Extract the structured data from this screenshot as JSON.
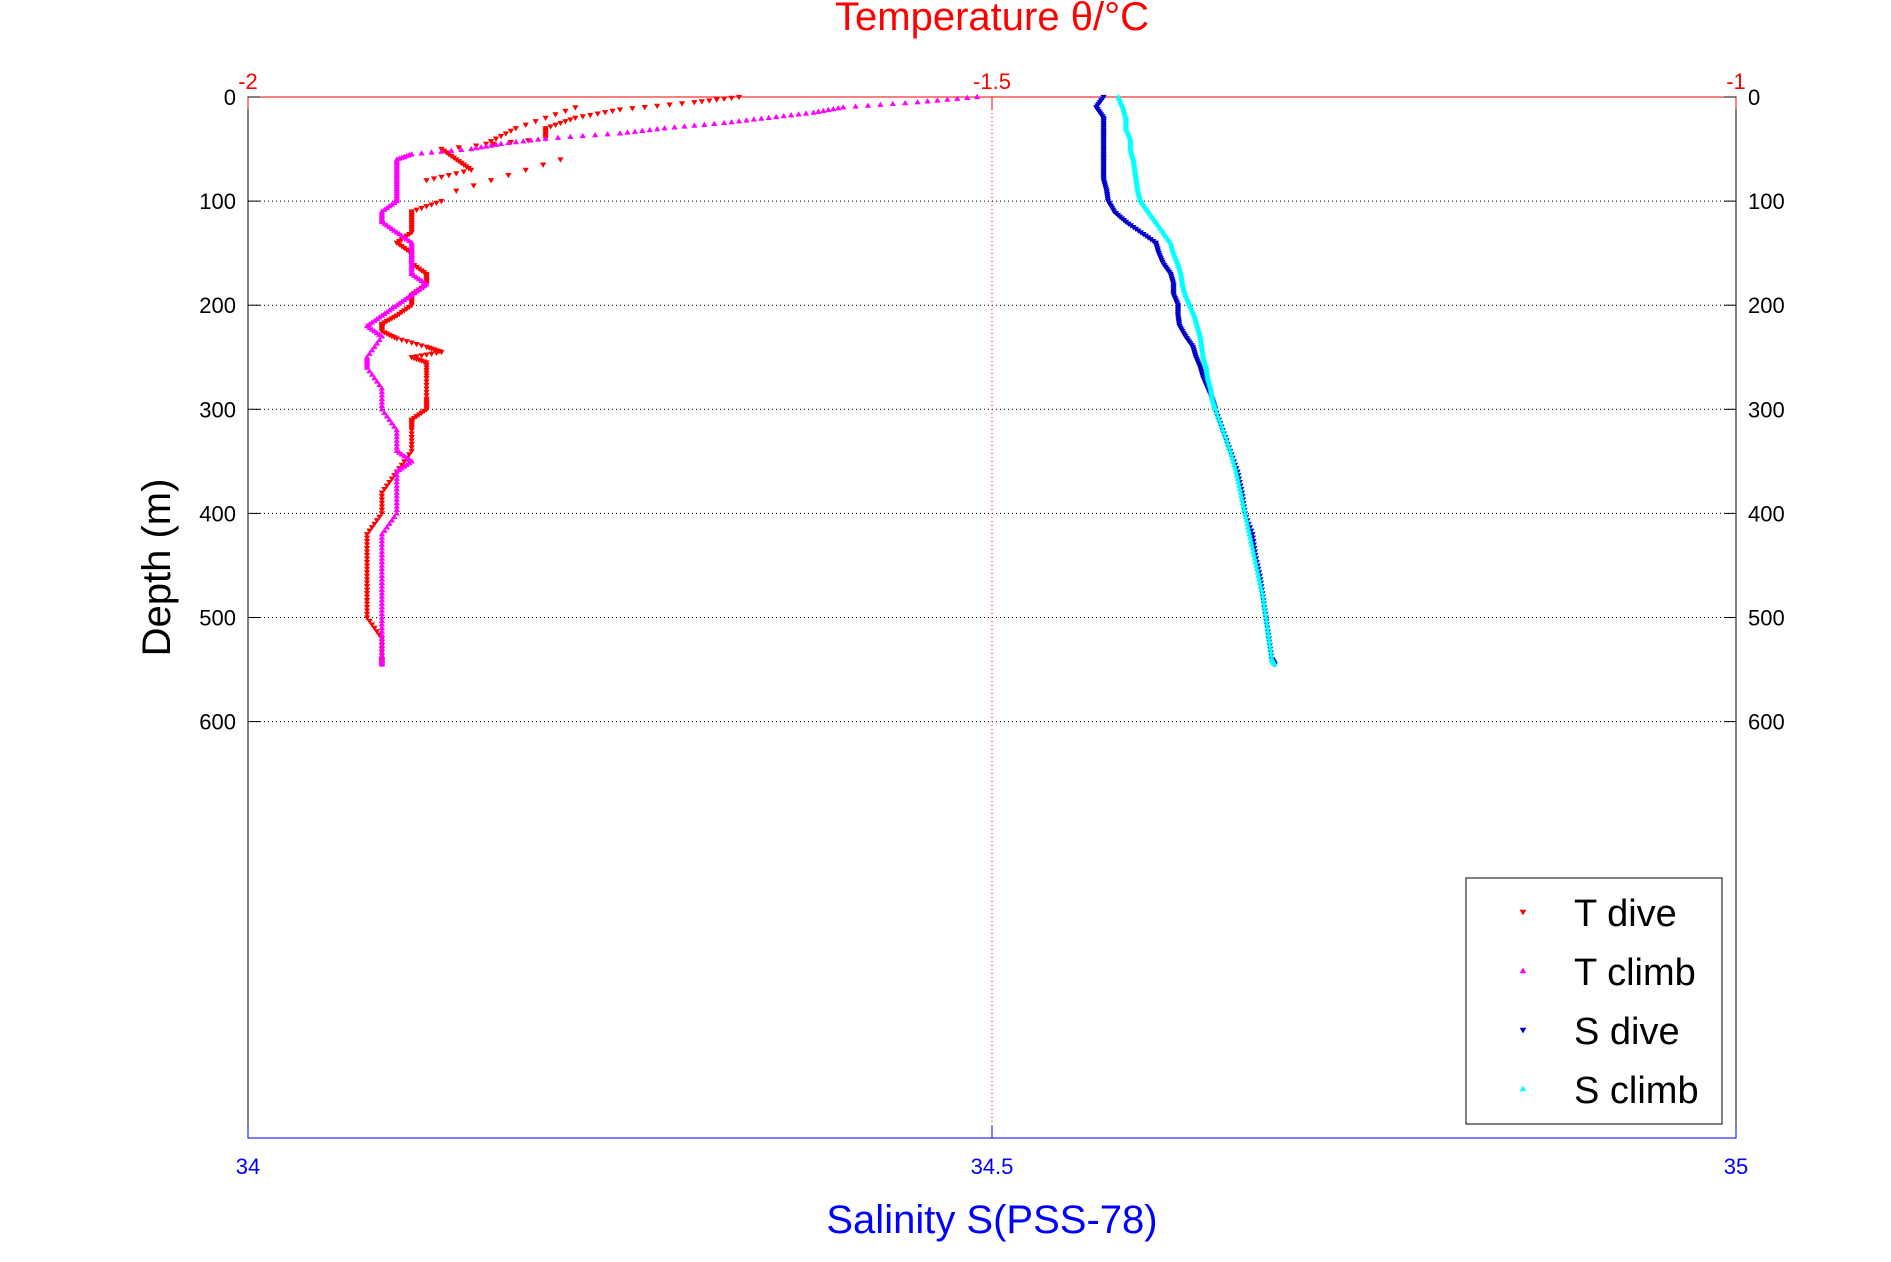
{
  "chart_data": {
    "type": "scatter",
    "title": "Temperature θ/°C",
    "xlabel": "Salinity S(PSS-78)",
    "ylabel": "Depth (m)",
    "top_axis": {
      "label": "Temperature θ/°C",
      "range": [
        -2,
        -1
      ],
      "ticks": [
        -2,
        -1.5,
        -1
      ],
      "tick_labels": [
        "-2",
        "-1.5",
        "-1"
      ],
      "color": "#ff0000"
    },
    "bottom_axis": {
      "label": "Salinity S(PSS-78)",
      "range": [
        34,
        35
      ],
      "ticks": [
        34,
        34.5,
        35
      ],
      "tick_labels": [
        "34",
        "34.5",
        "35"
      ],
      "color": "#0000ff"
    },
    "y_axis": {
      "range": [
        0,
        1000
      ],
      "reversed": true,
      "ticks": [
        0,
        100,
        200,
        300,
        400,
        500,
        600
      ],
      "tick_labels": [
        "0",
        "100",
        "200",
        "300",
        "400",
        "500",
        "600"
      ]
    },
    "grid": true,
    "legend_position": "bottom-right",
    "series": [
      {
        "name": "T dive",
        "axis": "top",
        "color": "#ff0000",
        "marker": "triangle-down",
        "points": [
          [
            -1.67,
            0
          ],
          [
            -1.7,
            5
          ],
          [
            -1.75,
            12
          ],
          [
            -1.78,
            20
          ],
          [
            -1.8,
            30
          ],
          [
            -1.8,
            40
          ],
          [
            -1.87,
            50
          ],
          [
            -1.86,
            60
          ],
          [
            -1.85,
            70
          ],
          [
            -1.88,
            80
          ],
          [
            -1.78,
            10
          ],
          [
            -1.82,
            30
          ],
          [
            -1.84,
            45
          ],
          [
            -1.86,
            90
          ],
          [
            -1.79,
            60
          ],
          [
            -1.87,
            100
          ],
          [
            -1.89,
            110
          ],
          [
            -1.89,
            120
          ],
          [
            -1.89,
            130
          ],
          [
            -1.9,
            140
          ],
          [
            -1.89,
            150
          ],
          [
            -1.89,
            160
          ],
          [
            -1.88,
            170
          ],
          [
            -1.88,
            180
          ],
          [
            -1.89,
            190
          ],
          [
            -1.89,
            200
          ],
          [
            -1.9,
            210
          ],
          [
            -1.91,
            218
          ],
          [
            -1.91,
            225
          ],
          [
            -1.9,
            232
          ],
          [
            -1.88,
            240
          ],
          [
            -1.87,
            245
          ],
          [
            -1.89,
            250
          ],
          [
            -1.88,
            255
          ],
          [
            -1.88,
            270
          ],
          [
            -1.88,
            290
          ],
          [
            -1.88,
            300
          ],
          [
            -1.89,
            310
          ],
          [
            -1.89,
            320
          ],
          [
            -1.89,
            340
          ],
          [
            -1.9,
            360
          ],
          [
            -1.91,
            380
          ],
          [
            -1.91,
            400
          ],
          [
            -1.92,
            420
          ],
          [
            -1.92,
            440
          ],
          [
            -1.92,
            460
          ],
          [
            -1.92,
            480
          ],
          [
            -1.92,
            500
          ],
          [
            -1.91,
            520
          ],
          [
            -1.91,
            540
          ],
          [
            -1.91,
            545
          ]
        ]
      },
      {
        "name": "T climb",
        "axis": "top",
        "color": "#ff00ff",
        "marker": "triangle-up",
        "points": [
          [
            -1.51,
            0
          ],
          [
            -1.55,
            5
          ],
          [
            -1.6,
            10
          ],
          [
            -1.62,
            15
          ],
          [
            -1.65,
            20
          ],
          [
            -1.68,
            25
          ],
          [
            -1.72,
            30
          ],
          [
            -1.75,
            35
          ],
          [
            -1.8,
            40
          ],
          [
            -1.83,
            45
          ],
          [
            -1.85,
            50
          ],
          [
            -1.89,
            55
          ],
          [
            -1.9,
            60
          ],
          [
            -1.9,
            70
          ],
          [
            -1.9,
            80
          ],
          [
            -1.9,
            90
          ],
          [
            -1.9,
            100
          ],
          [
            -1.91,
            110
          ],
          [
            -1.91,
            120
          ],
          [
            -1.9,
            130
          ],
          [
            -1.89,
            140
          ],
          [
            -1.89,
            150
          ],
          [
            -1.89,
            160
          ],
          [
            -1.89,
            170
          ],
          [
            -1.88,
            180
          ],
          [
            -1.89,
            190
          ],
          [
            -1.9,
            200
          ],
          [
            -1.91,
            210
          ],
          [
            -1.92,
            220
          ],
          [
            -1.91,
            230
          ],
          [
            -1.92,
            250
          ],
          [
            -1.92,
            260
          ],
          [
            -1.91,
            280
          ],
          [
            -1.91,
            300
          ],
          [
            -1.9,
            320
          ],
          [
            -1.9,
            340
          ],
          [
            -1.89,
            350
          ],
          [
            -1.9,
            360
          ],
          [
            -1.9,
            380
          ],
          [
            -1.9,
            400
          ],
          [
            -1.91,
            420
          ],
          [
            -1.91,
            440
          ],
          [
            -1.91,
            460
          ],
          [
            -1.91,
            480
          ],
          [
            -1.91,
            500
          ],
          [
            -1.91,
            520
          ],
          [
            -1.91,
            540
          ],
          [
            -1.91,
            545
          ]
        ]
      },
      {
        "name": "S dive",
        "axis": "bottom",
        "color": "#0000cc",
        "marker": "triangle-down",
        "points": [
          [
            34.575,
            0
          ],
          [
            34.57,
            10
          ],
          [
            34.575,
            20
          ],
          [
            34.575,
            30
          ],
          [
            34.575,
            40
          ],
          [
            34.575,
            50
          ],
          [
            34.575,
            60
          ],
          [
            34.575,
            70
          ],
          [
            34.575,
            80
          ],
          [
            34.577,
            90
          ],
          [
            34.578,
            100
          ],
          [
            34.582,
            110
          ],
          [
            34.59,
            120
          ],
          [
            34.6,
            130
          ],
          [
            34.61,
            140
          ],
          [
            34.612,
            150
          ],
          [
            34.615,
            160
          ],
          [
            34.62,
            170
          ],
          [
            34.622,
            180
          ],
          [
            34.622,
            190
          ],
          [
            34.625,
            200
          ],
          [
            34.625,
            210
          ],
          [
            34.626,
            220
          ],
          [
            34.63,
            230
          ],
          [
            34.635,
            240
          ],
          [
            34.637,
            250
          ],
          [
            34.64,
            260
          ],
          [
            34.642,
            270
          ],
          [
            34.645,
            280
          ],
          [
            34.648,
            290
          ],
          [
            34.65,
            300
          ],
          [
            34.655,
            320
          ],
          [
            34.66,
            340
          ],
          [
            34.665,
            360
          ],
          [
            34.668,
            380
          ],
          [
            34.67,
            400
          ],
          [
            34.675,
            420
          ],
          [
            34.677,
            440
          ],
          [
            34.68,
            460
          ],
          [
            34.682,
            480
          ],
          [
            34.684,
            500
          ],
          [
            34.686,
            520
          ],
          [
            34.688,
            540
          ],
          [
            34.69,
            545
          ]
        ]
      },
      {
        "name": "S climb",
        "axis": "bottom",
        "color": "#00ffff",
        "marker": "triangle-up",
        "points": [
          [
            34.585,
            0
          ],
          [
            34.588,
            10
          ],
          [
            34.59,
            20
          ],
          [
            34.59,
            30
          ],
          [
            34.593,
            40
          ],
          [
            34.593,
            50
          ],
          [
            34.595,
            60
          ],
          [
            34.596,
            70
          ],
          [
            34.597,
            80
          ],
          [
            34.598,
            90
          ],
          [
            34.6,
            100
          ],
          [
            34.605,
            110
          ],
          [
            34.61,
            120
          ],
          [
            34.615,
            130
          ],
          [
            34.62,
            140
          ],
          [
            34.622,
            150
          ],
          [
            34.625,
            160
          ],
          [
            34.627,
            170
          ],
          [
            34.628,
            180
          ],
          [
            34.63,
            190
          ],
          [
            34.633,
            200
          ],
          [
            34.636,
            210
          ],
          [
            34.638,
            220
          ],
          [
            34.64,
            230
          ],
          [
            34.641,
            240
          ],
          [
            34.642,
            250
          ],
          [
            34.644,
            260
          ],
          [
            34.645,
            270
          ],
          [
            34.647,
            280
          ],
          [
            34.648,
            290
          ],
          [
            34.65,
            300
          ],
          [
            34.655,
            320
          ],
          [
            34.66,
            340
          ],
          [
            34.664,
            360
          ],
          [
            34.667,
            380
          ],
          [
            34.67,
            400
          ],
          [
            34.673,
            420
          ],
          [
            34.676,
            440
          ],
          [
            34.679,
            460
          ],
          [
            34.682,
            480
          ],
          [
            34.684,
            500
          ],
          [
            34.686,
            520
          ],
          [
            34.688,
            540
          ],
          [
            34.69,
            545
          ]
        ]
      }
    ]
  }
}
